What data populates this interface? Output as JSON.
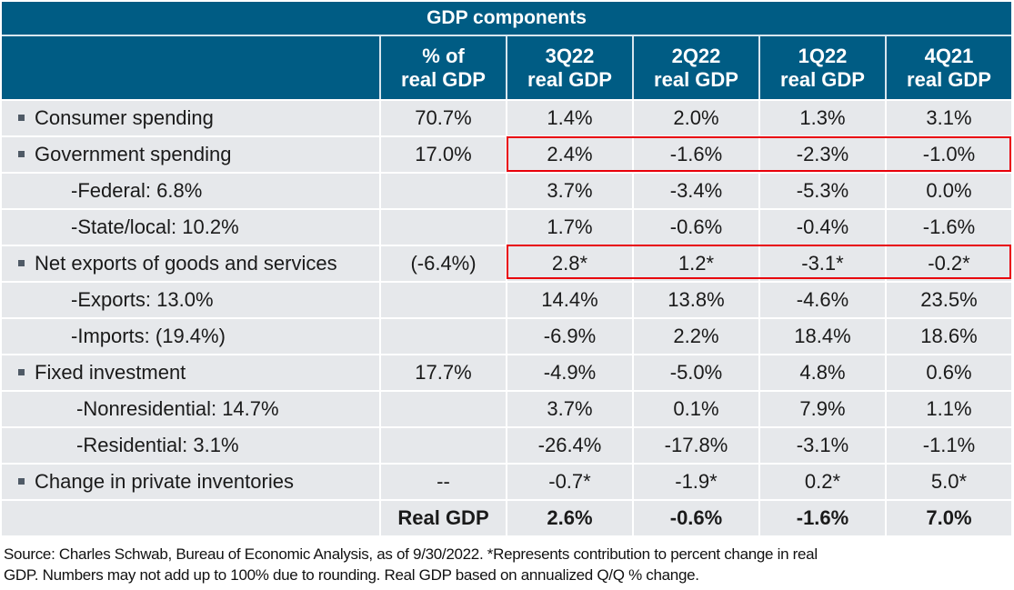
{
  "table": {
    "title": "GDP components",
    "headers": [
      {
        "line1": "",
        "line2": ""
      },
      {
        "line1": "% of",
        "line2": "real GDP"
      },
      {
        "line1": "3Q22",
        "line2": "real GDP"
      },
      {
        "line1": "2Q22",
        "line2": "real GDP"
      },
      {
        "line1": "1Q22",
        "line2": "real GDP"
      },
      {
        "line1": "4Q21",
        "line2": "real GDP"
      }
    ],
    "rows": [
      {
        "label": "Consumer spending",
        "level": "main",
        "share": "70.7%",
        "q3_22": "1.4%",
        "q2_22": "2.0%",
        "q1_22": "1.3%",
        "q4_21": "3.1%",
        "highlighted": false
      },
      {
        "label": "Government spending",
        "level": "main",
        "share": "17.0%",
        "q3_22": "2.4%",
        "q2_22": "-1.6%",
        "q1_22": "-2.3%",
        "q4_21": "-1.0%",
        "highlighted": true
      },
      {
        "label": "-Federal: 6.8%",
        "level": "sub",
        "share": "",
        "q3_22": "3.7%",
        "q2_22": "-3.4%",
        "q1_22": "-5.3%",
        "q4_21": "0.0%",
        "highlighted": false
      },
      {
        "label": "-State/local: 10.2%",
        "level": "sub",
        "share": "",
        "q3_22": "1.7%",
        "q2_22": "-0.6%",
        "q1_22": "-0.4%",
        "q4_21": "-1.6%",
        "highlighted": false
      },
      {
        "label": "Net exports of goods and services",
        "level": "main",
        "share": "(-6.4%)",
        "q3_22": "2.8*",
        "q2_22": "1.2*",
        "q1_22": "-3.1*",
        "q4_21": "-0.2*",
        "highlighted": true
      },
      {
        "label": "-Exports: 13.0%",
        "level": "sub",
        "share": "",
        "q3_22": "14.4%",
        "q2_22": "13.8%",
        "q1_22": "-4.6%",
        "q4_21": "23.5%",
        "highlighted": false
      },
      {
        "label": "-Imports: (19.4%)",
        "level": "sub",
        "share": "",
        "q3_22": "-6.9%",
        "q2_22": "2.2%",
        "q1_22": "18.4%",
        "q4_21": "18.6%",
        "highlighted": false
      },
      {
        "label": "Fixed investment",
        "level": "main",
        "share": "17.7%",
        "q3_22": "-4.9%",
        "q2_22": "-5.0%",
        "q1_22": "4.8%",
        "q4_21": "0.6%",
        "highlighted": false
      },
      {
        "label": "-Nonresidential: 14.7%",
        "level": "sub2",
        "share": "",
        "q3_22": "3.7%",
        "q2_22": "0.1%",
        "q1_22": "7.9%",
        "q4_21": "1.1%",
        "highlighted": false
      },
      {
        "label": "-Residential: 3.1%",
        "level": "sub2",
        "share": "",
        "q3_22": "-26.4%",
        "q2_22": "-17.8%",
        "q1_22": "-3.1%",
        "q4_21": "-1.1%",
        "highlighted": false
      },
      {
        "label": "Change in private inventories",
        "level": "main",
        "share": "--",
        "q3_22": "-0.7*",
        "q2_22": "-1.9*",
        "q1_22": "0.2*",
        "q4_21": "5.0*",
        "highlighted": false
      },
      {
        "label": "",
        "level": "total",
        "share": "Real GDP",
        "q3_22": "2.6%",
        "q2_22": "-0.6%",
        "q1_22": "-1.6%",
        "q4_21": "7.0%",
        "highlighted": false
      }
    ]
  },
  "colors": {
    "header_bg": "#005c84",
    "row_bg": "#e6e8eb",
    "highlight_border": "#e8000b"
  },
  "footnote": {
    "line1": "Source: Charles Schwab, Bureau of Economic Analysis, as of 9/30/2022. *Represents contribution to percent change in real",
    "line2": "GDP. Numbers may not add up to 100% due to rounding. Real GDP based on annualized Q/Q % change."
  }
}
